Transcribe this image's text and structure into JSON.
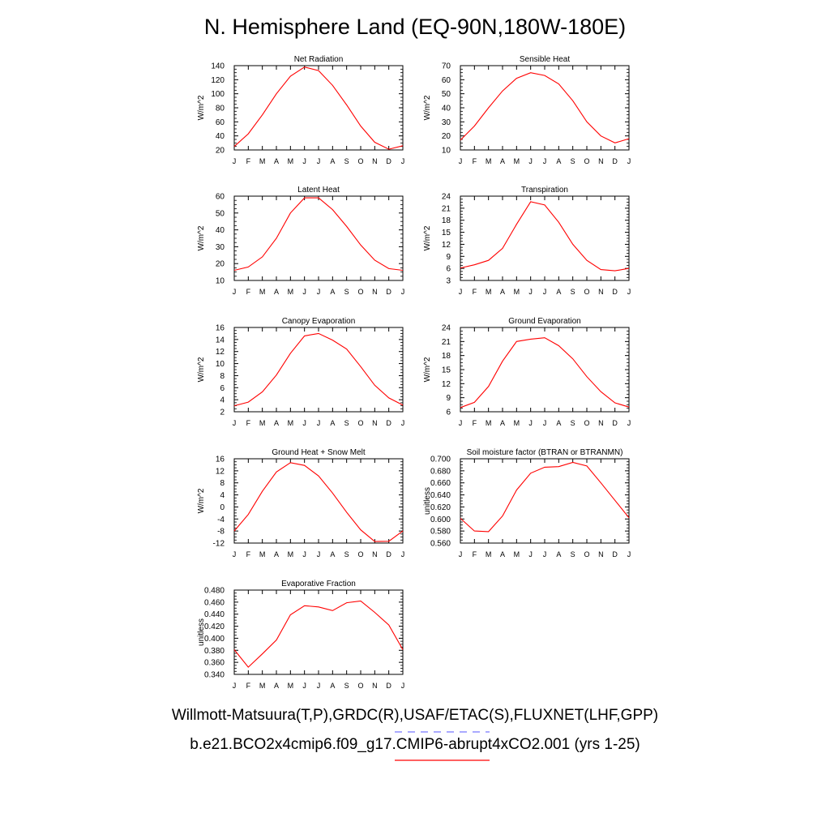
{
  "title": "N. Hemisphere Land (EQ-90N,180W-180E)",
  "colors": {
    "model_line": "#ff0000",
    "obs_line": "#7777ff",
    "axis": "#000000"
  },
  "months": [
    "J",
    "F",
    "M",
    "A",
    "M",
    "J",
    "J",
    "A",
    "S",
    "O",
    "N",
    "D",
    "J"
  ],
  "chart_data": [
    {
      "type": "line",
      "title": "Net Radiation",
      "ylabel": "W/m^2",
      "ylim": [
        20,
        140
      ],
      "yticks": [
        20,
        40,
        60,
        80,
        100,
        120,
        140
      ],
      "ytick_labels": [
        "20",
        "40",
        "60",
        "80",
        "100",
        "120",
        "140"
      ],
      "series": [
        {
          "values": [
            25,
            43,
            70,
            100,
            125,
            138,
            133,
            112,
            84,
            54,
            31,
            21,
            26
          ]
        }
      ]
    },
    {
      "type": "line",
      "title": "Sensible Heat",
      "ylabel": "W/m^2",
      "ylim": [
        10,
        70
      ],
      "yticks": [
        10,
        20,
        30,
        40,
        50,
        60,
        70
      ],
      "ytick_labels": [
        "10",
        "20",
        "30",
        "40",
        "50",
        "60",
        "70"
      ],
      "series": [
        {
          "values": [
            17,
            27,
            40,
            52,
            61,
            65,
            63,
            57,
            45,
            30,
            20,
            15,
            18
          ]
        }
      ]
    },
    {
      "type": "line",
      "title": "Latent Heat",
      "ylabel": "W/m^2",
      "ylim": [
        10,
        60
      ],
      "yticks": [
        10,
        20,
        30,
        40,
        50,
        60
      ],
      "ytick_labels": [
        "10",
        "20",
        "30",
        "40",
        "50",
        "60"
      ],
      "series": [
        {
          "values": [
            16,
            18,
            24,
            35,
            50,
            59,
            59,
            52,
            42,
            31,
            22,
            17,
            16
          ]
        }
      ]
    },
    {
      "type": "line",
      "title": "Transpiration",
      "ylabel": "W/m^2",
      "ylim": [
        3,
        24
      ],
      "yticks": [
        3,
        6,
        9,
        12,
        15,
        18,
        21,
        24
      ],
      "ytick_labels": [
        "3",
        "6",
        "9",
        "12",
        "15",
        "18",
        "21",
        "24"
      ],
      "series": [
        {
          "values": [
            6.1,
            6.9,
            8,
            11,
            17,
            22.6,
            21.8,
            17.5,
            12,
            8,
            5.7,
            5.4,
            6
          ]
        }
      ]
    },
    {
      "type": "line",
      "title": "Canopy Evaporation",
      "ylabel": "W/m^2",
      "ylim": [
        2,
        16
      ],
      "yticks": [
        2,
        4,
        6,
        8,
        10,
        12,
        14,
        16
      ],
      "ytick_labels": [
        "2",
        "4",
        "6",
        "8",
        "10",
        "12",
        "14",
        "16"
      ],
      "series": [
        {
          "values": [
            3,
            3.6,
            5.3,
            8.1,
            11.7,
            14.6,
            15,
            13.9,
            12.4,
            9.5,
            6.4,
            4.3,
            3.1
          ]
        }
      ]
    },
    {
      "type": "line",
      "title": "Ground Evaporation",
      "ylabel": "W/m^2",
      "ylim": [
        6,
        24
      ],
      "yticks": [
        6,
        9,
        12,
        15,
        18,
        21,
        24
      ],
      "ytick_labels": [
        "6",
        "9",
        "12",
        "15",
        "18",
        "21",
        "24"
      ],
      "series": [
        {
          "values": [
            6.9,
            8,
            11.4,
            16.8,
            21,
            21.5,
            21.8,
            20.1,
            17.3,
            13.5,
            10.3,
            7.9,
            7
          ]
        }
      ]
    },
    {
      "type": "line",
      "title": "Ground Heat + Snow Melt",
      "ylabel": "W/m^2",
      "ylim": [
        -12,
        16
      ],
      "yticks": [
        -12,
        -8,
        -4,
        0,
        4,
        8,
        12,
        16
      ],
      "ytick_labels": [
        "-12",
        "-8",
        "-4",
        "0",
        "4",
        "8",
        "12",
        "16"
      ],
      "series": [
        {
          "values": [
            -8,
            -2.5,
            5.2,
            11.6,
            14.7,
            13.8,
            10.3,
            4.6,
            -1.8,
            -7.6,
            -11.5,
            -11.4,
            -8
          ]
        }
      ]
    },
    {
      "type": "line",
      "title": "Soil moisture factor (BTRAN or BTRANMN)",
      "ylabel": "unitless",
      "ylim": [
        0.56,
        0.7
      ],
      "yticks": [
        0.56,
        0.58,
        0.6,
        0.62,
        0.64,
        0.66,
        0.68,
        0.7
      ],
      "ytick_labels": [
        "0.560",
        "0.580",
        "0.600",
        "0.620",
        "0.640",
        "0.660",
        "0.680",
        "0.700"
      ],
      "series": [
        {
          "values": [
            0.601,
            0.58,
            0.579,
            0.605,
            0.648,
            0.676,
            0.686,
            0.687,
            0.694,
            0.688,
            0.66,
            0.631,
            0.602
          ]
        }
      ]
    },
    {
      "type": "line",
      "title": "Evaporative Fraction",
      "ylabel": "unitless",
      "ylim": [
        0.34,
        0.48
      ],
      "yticks": [
        0.34,
        0.36,
        0.38,
        0.4,
        0.42,
        0.44,
        0.46,
        0.48
      ],
      "ytick_labels": [
        "0.340",
        "0.360",
        "0.380",
        "0.400",
        "0.420",
        "0.440",
        "0.460",
        "0.480"
      ],
      "series": [
        {
          "values": [
            0.381,
            0.352,
            0.374,
            0.397,
            0.439,
            0.454,
            0.452,
            0.446,
            0.459,
            0.462,
            0.443,
            0.422,
            0.381
          ]
        }
      ]
    }
  ],
  "footer": {
    "obs": "Willmott-Matsuura(T,P),GRDC(R),USAF/ETAC(S),FLUXNET(LHF,GPP)",
    "model": "b.e21.BCO2x4cmip6.f09_g17.CMIP6-abrupt4xCO2.001 (yrs 1-25)"
  }
}
